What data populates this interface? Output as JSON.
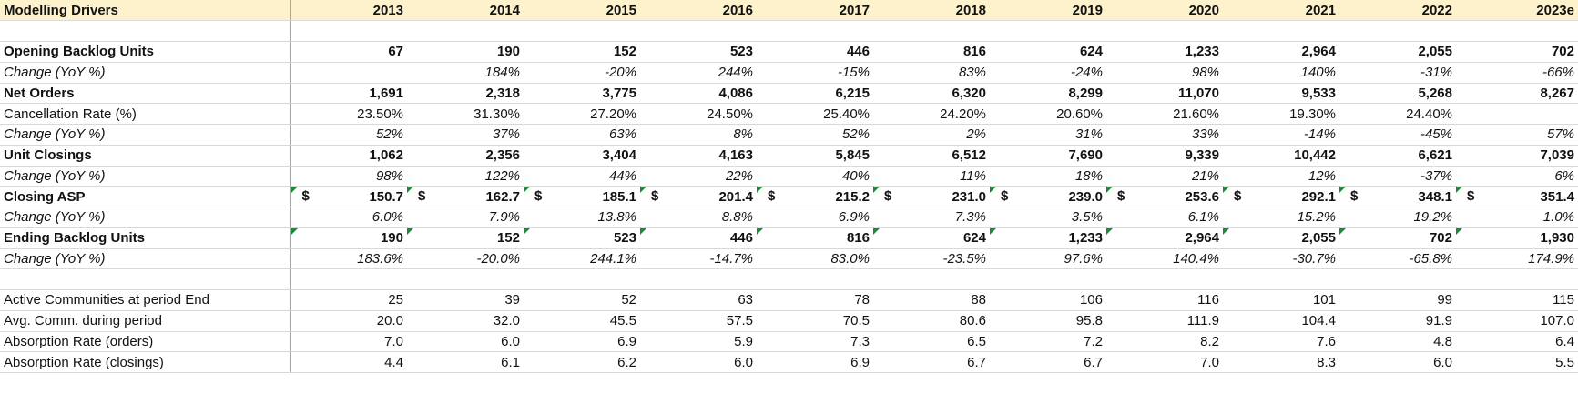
{
  "sheet": {
    "header_label": "Modelling Drivers",
    "years": [
      "2013",
      "2014",
      "2015",
      "2016",
      "2017",
      "2018",
      "2019",
      "2020",
      "2021",
      "2022",
      "2023e"
    ],
    "currency_symbol": "$",
    "rows": [
      {
        "label": "Opening Backlog Units",
        "style": "bold",
        "values": [
          "67",
          "190",
          "152",
          "523",
          "446",
          "816",
          "624",
          "1,233",
          "2,964",
          "2,055",
          "702"
        ]
      },
      {
        "label": "Change (YoY %)",
        "style": "ital",
        "values": [
          "",
          "184%",
          "-20%",
          "244%",
          "-15%",
          "83%",
          "-24%",
          "98%",
          "140%",
          "-31%",
          "-66%"
        ]
      },
      {
        "label": "Net Orders",
        "style": "bold",
        "values": [
          "1,691",
          "2,318",
          "3,775",
          "4,086",
          "6,215",
          "6,320",
          "8,299",
          "11,070",
          "9,533",
          "5,268",
          "8,267"
        ]
      },
      {
        "label": "Cancellation Rate (%)",
        "style": "normal",
        "values": [
          "23.50%",
          "31.30%",
          "27.20%",
          "24.50%",
          "25.40%",
          "24.20%",
          "20.60%",
          "21.60%",
          "19.30%",
          "24.40%",
          ""
        ]
      },
      {
        "label": "Change (YoY %)",
        "style": "ital",
        "values": [
          "52%",
          "37%",
          "63%",
          "8%",
          "52%",
          "2%",
          "31%",
          "33%",
          "-14%",
          "-45%",
          "57%"
        ]
      },
      {
        "label": "Unit Closings",
        "style": "bold",
        "values": [
          "1,062",
          "2,356",
          "3,404",
          "4,163",
          "5,845",
          "6,512",
          "7,690",
          "9,339",
          "10,442",
          "6,621",
          "7,039"
        ]
      },
      {
        "label": "Change (YoY %)",
        "style": "ital",
        "values": [
          "98%",
          "122%",
          "44%",
          "22%",
          "40%",
          "11%",
          "18%",
          "21%",
          "12%",
          "-37%",
          "6%"
        ]
      },
      {
        "label": "Closing ASP",
        "style": "bold",
        "currency": true,
        "values": [
          "150.7",
          "162.7",
          "185.1",
          "201.4",
          "215.2",
          "231.0",
          "239.0",
          "253.6",
          "292.1",
          "348.1",
          "351.4"
        ]
      },
      {
        "label": "Change (YoY %)",
        "style": "ital",
        "values": [
          "6.0%",
          "7.9%",
          "13.8%",
          "8.8%",
          "6.9%",
          "7.3%",
          "3.5%",
          "6.1%",
          "15.2%",
          "19.2%",
          "1.0%"
        ]
      },
      {
        "label": "Ending Backlog Units",
        "style": "bold",
        "flag": true,
        "values": [
          "190",
          "152",
          "523",
          "446",
          "816",
          "624",
          "1,233",
          "2,964",
          "2,055",
          "702",
          "1,930"
        ]
      },
      {
        "label": "Change (YoY %)",
        "style": "ital",
        "values": [
          "183.6%",
          "-20.0%",
          "244.1%",
          "-14.7%",
          "83.0%",
          "-23.5%",
          "97.6%",
          "140.4%",
          "-30.7%",
          "-65.8%",
          "174.9%"
        ]
      },
      {
        "label": "",
        "style": "blank",
        "values": []
      },
      {
        "label": "Active Communities at period End",
        "style": "normal",
        "values": [
          "25",
          "39",
          "52",
          "63",
          "78",
          "88",
          "106",
          "116",
          "101",
          "99",
          "115"
        ]
      },
      {
        "label": "Avg. Comm. during period",
        "style": "normal",
        "values": [
          "20.0",
          "32.0",
          "45.5",
          "57.5",
          "70.5",
          "80.6",
          "95.8",
          "111.9",
          "104.4",
          "91.9",
          "107.0"
        ]
      },
      {
        "label": "Absorption Rate (orders)",
        "style": "normal",
        "values": [
          "7.0",
          "6.0",
          "6.9",
          "5.9",
          "7.3",
          "6.5",
          "7.2",
          "8.2",
          "7.6",
          "4.8",
          "6.4"
        ]
      },
      {
        "label": "Absorption Rate (closings)",
        "style": "normal",
        "values": [
          "4.4",
          "6.1",
          "6.2",
          "6.0",
          "6.9",
          "6.7",
          "6.7",
          "7.0",
          "8.3",
          "6.0",
          "5.5"
        ]
      }
    ]
  }
}
